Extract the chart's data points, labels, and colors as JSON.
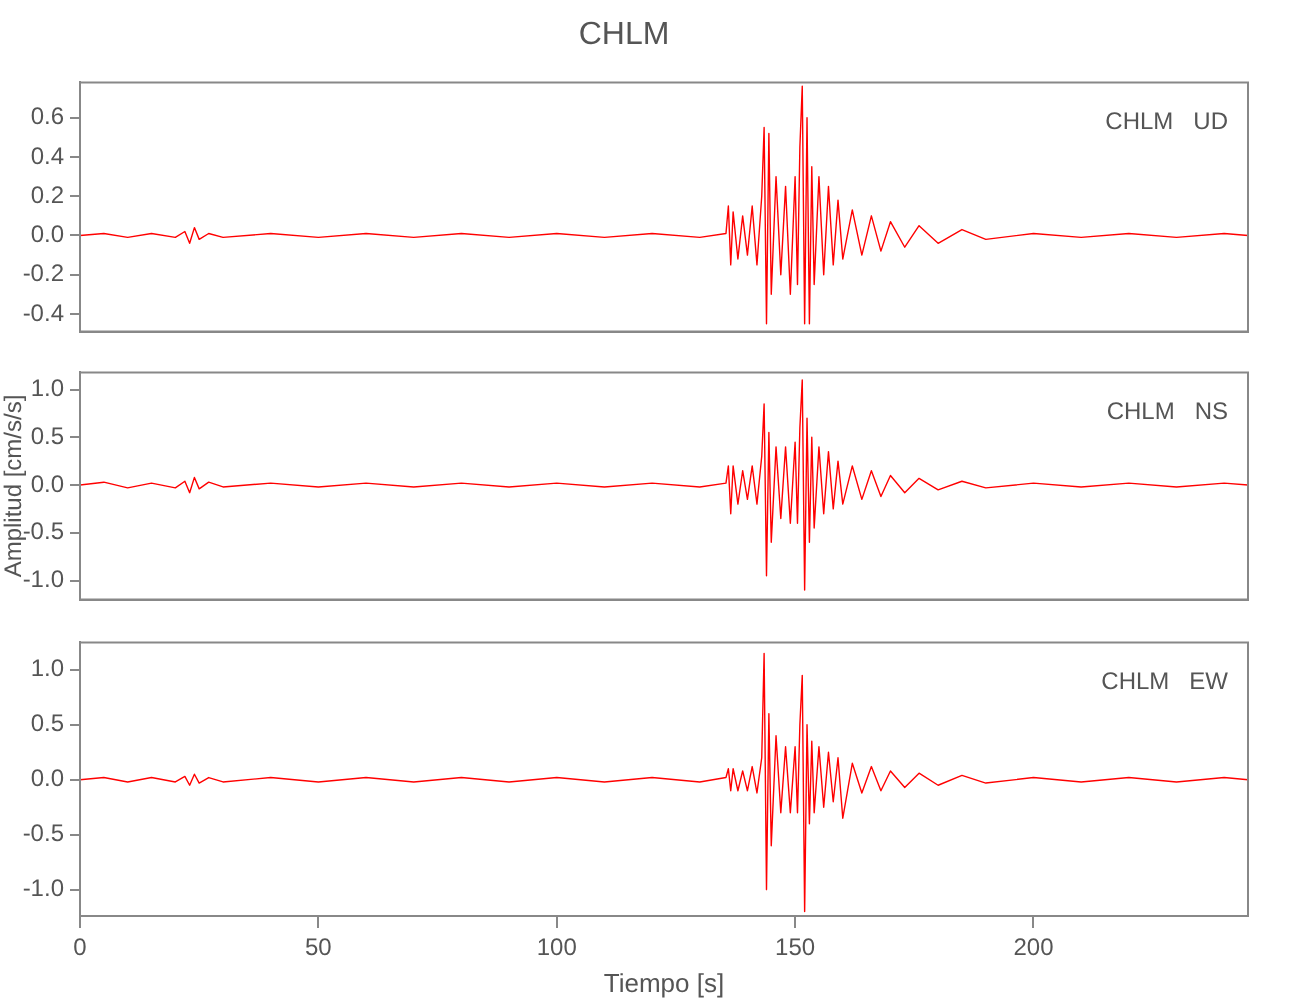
{
  "chart_data": [
    {
      "type": "line",
      "title": "CHLM",
      "annotations": [
        "CHLM   UD"
      ],
      "x": [
        0,
        5,
        10,
        15,
        20,
        22,
        23,
        24,
        25,
        27,
        30,
        40,
        50,
        60,
        70,
        80,
        90,
        100,
        110,
        120,
        130,
        135.5,
        136,
        136.5,
        137,
        138,
        139,
        140,
        141,
        142,
        143,
        143.5,
        144,
        144.5,
        145,
        146,
        147,
        148,
        149,
        150,
        150.5,
        151,
        151.5,
        152,
        152.5,
        153,
        153.5,
        154,
        155,
        156,
        157,
        158,
        159,
        160,
        162,
        164,
        166,
        168,
        170,
        173,
        176,
        180,
        185,
        190,
        200,
        210,
        220,
        230,
        240,
        245
      ],
      "series": [
        {
          "color": "#ff0000",
          "values": [
            0,
            0.01,
            -0.01,
            0.01,
            -0.01,
            0.02,
            -0.04,
            0.04,
            -0.02,
            0.01,
            -0.01,
            0.01,
            -0.01,
            0.01,
            -0.01,
            0.01,
            -0.01,
            0.01,
            -0.01,
            0.01,
            -0.01,
            0.01,
            0.15,
            -0.15,
            0.12,
            -0.12,
            0.1,
            -0.1,
            0.15,
            -0.15,
            0.2,
            0.55,
            -0.45,
            0.52,
            -0.3,
            0.3,
            -0.2,
            0.25,
            -0.3,
            0.3,
            -0.25,
            0.45,
            0.76,
            -0.45,
            0.6,
            -0.45,
            0.35,
            -0.25,
            0.3,
            -0.2,
            0.25,
            -0.15,
            0.18,
            -0.12,
            0.13,
            -0.1,
            0.1,
            -0.08,
            0.07,
            -0.06,
            0.05,
            -0.04,
            0.03,
            -0.02,
            0.01,
            -0.01,
            0.01,
            -0.01,
            0.01,
            0
          ]
        }
      ],
      "xlim": [
        0,
        245
      ],
      "xticks": [
        0,
        50,
        100,
        150,
        200
      ],
      "ylim": [
        -0.49,
        0.78
      ],
      "yticks": [
        {
          "value": -0.4,
          "label": "-0.4"
        },
        {
          "value": -0.2,
          "label": "-0.2"
        },
        {
          "value": 0,
          "label": "0.0"
        },
        {
          "value": 0.2,
          "label": "0.2"
        },
        {
          "value": 0.4,
          "label": "0.4"
        },
        {
          "value": 0.6,
          "label": "0.6"
        }
      ],
      "tick_labels": "y",
      "grid": false,
      "legend": false,
      "marker": "none",
      "line_style": "solid"
    },
    {
      "type": "line",
      "ylabel": "Amplitud [cm/s/s]",
      "annotations": [
        "CHLM   NS"
      ],
      "x": [
        0,
        5,
        10,
        15,
        20,
        22,
        23,
        24,
        25,
        27,
        30,
        40,
        50,
        60,
        70,
        80,
        90,
        100,
        110,
        120,
        130,
        135.5,
        136,
        136.5,
        137,
        138,
        139,
        140,
        141,
        142,
        143,
        143.5,
        144,
        144.5,
        145,
        146,
        147,
        148,
        149,
        150,
        150.5,
        151,
        151.5,
        152,
        152.5,
        153,
        153.5,
        154,
        155,
        156,
        157,
        158,
        159,
        160,
        162,
        164,
        166,
        168,
        170,
        173,
        176,
        180,
        185,
        190,
        200,
        210,
        220,
        230,
        240,
        245
      ],
      "series": [
        {
          "color": "#ff0000",
          "values": [
            0,
            0.03,
            -0.03,
            0.02,
            -0.03,
            0.04,
            -0.08,
            0.08,
            -0.04,
            0.03,
            -0.02,
            0.02,
            -0.02,
            0.02,
            -0.02,
            0.02,
            -0.02,
            0.02,
            -0.02,
            0.02,
            -0.02,
            0.02,
            0.2,
            -0.3,
            0.2,
            -0.2,
            0.15,
            -0.15,
            0.2,
            -0.2,
            0.3,
            0.85,
            -0.95,
            0.55,
            -0.6,
            0.4,
            -0.35,
            0.4,
            -0.4,
            0.45,
            -0.4,
            0.6,
            1.1,
            -1.1,
            0.7,
            -0.6,
            0.5,
            -0.45,
            0.4,
            -0.3,
            0.35,
            -0.25,
            0.25,
            -0.2,
            0.2,
            -0.15,
            0.15,
            -0.12,
            0.1,
            -0.08,
            0.07,
            -0.05,
            0.04,
            -0.03,
            0.02,
            -0.02,
            0.02,
            -0.02,
            0.02,
            0
          ]
        }
      ],
      "xlim": [
        0,
        245
      ],
      "xticks": [
        0,
        50,
        100,
        150,
        200
      ],
      "ylim": [
        -1.2,
        1.18
      ],
      "yticks": [
        {
          "value": -1,
          "label": "-1.0"
        },
        {
          "value": -0.5,
          "label": "-0.5"
        },
        {
          "value": 0,
          "label": "0.0"
        },
        {
          "value": 0.5,
          "label": "0.5"
        },
        {
          "value": 1,
          "label": "1.0"
        }
      ],
      "tick_labels": "y",
      "grid": false,
      "legend": false,
      "marker": "none",
      "line_style": "solid"
    },
    {
      "type": "line",
      "xlabel": "Tiempo [s]",
      "annotations": [
        "CHLM   EW"
      ],
      "x": [
        0,
        5,
        10,
        15,
        20,
        22,
        23,
        24,
        25,
        27,
        30,
        40,
        50,
        60,
        70,
        80,
        90,
        100,
        110,
        120,
        130,
        135.5,
        136,
        136.5,
        137,
        138,
        139,
        140,
        141,
        142,
        143,
        143.5,
        144,
        144.5,
        145,
        146,
        147,
        148,
        149,
        150,
        150.5,
        151,
        151.5,
        152,
        152.5,
        153,
        153.5,
        154,
        155,
        156,
        157,
        158,
        159,
        160,
        162,
        164,
        166,
        168,
        170,
        173,
        176,
        180,
        185,
        190,
        200,
        210,
        220,
        230,
        240,
        245
      ],
      "series": [
        {
          "color": "#ff0000",
          "values": [
            0,
            0.02,
            -0.02,
            0.02,
            -0.02,
            0.03,
            -0.05,
            0.05,
            -0.03,
            0.02,
            -0.02,
            0.02,
            -0.02,
            0.02,
            -0.02,
            0.02,
            -0.02,
            0.02,
            -0.02,
            0.02,
            -0.02,
            0.02,
            0.1,
            -0.1,
            0.1,
            -0.1,
            0.08,
            -0.1,
            0.12,
            -0.12,
            0.2,
            1.15,
            -1.0,
            0.6,
            -0.6,
            0.4,
            -0.3,
            0.3,
            -0.3,
            0.3,
            -0.3,
            0.5,
            0.95,
            -1.2,
            0.5,
            -0.4,
            0.35,
            -0.3,
            0.3,
            -0.25,
            0.25,
            -0.2,
            0.2,
            -0.35,
            0.15,
            -0.12,
            0.12,
            -0.1,
            0.08,
            -0.07,
            0.06,
            -0.05,
            0.04,
            -0.03,
            0.02,
            -0.02,
            0.02,
            -0.02,
            0.02,
            0
          ]
        }
      ],
      "xlim": [
        0,
        245
      ],
      "xticks": [
        0,
        50,
        100,
        150,
        200
      ],
      "ylim": [
        -1.24,
        1.25
      ],
      "yticks": [
        {
          "value": -1,
          "label": "-1.0"
        },
        {
          "value": -0.5,
          "label": "-0.5"
        },
        {
          "value": 0,
          "label": "0.0"
        },
        {
          "value": 0.5,
          "label": "0.5"
        },
        {
          "value": 1,
          "label": "1.0"
        }
      ],
      "grid": false,
      "legend": false,
      "marker": "none",
      "line_style": "solid"
    }
  ]
}
